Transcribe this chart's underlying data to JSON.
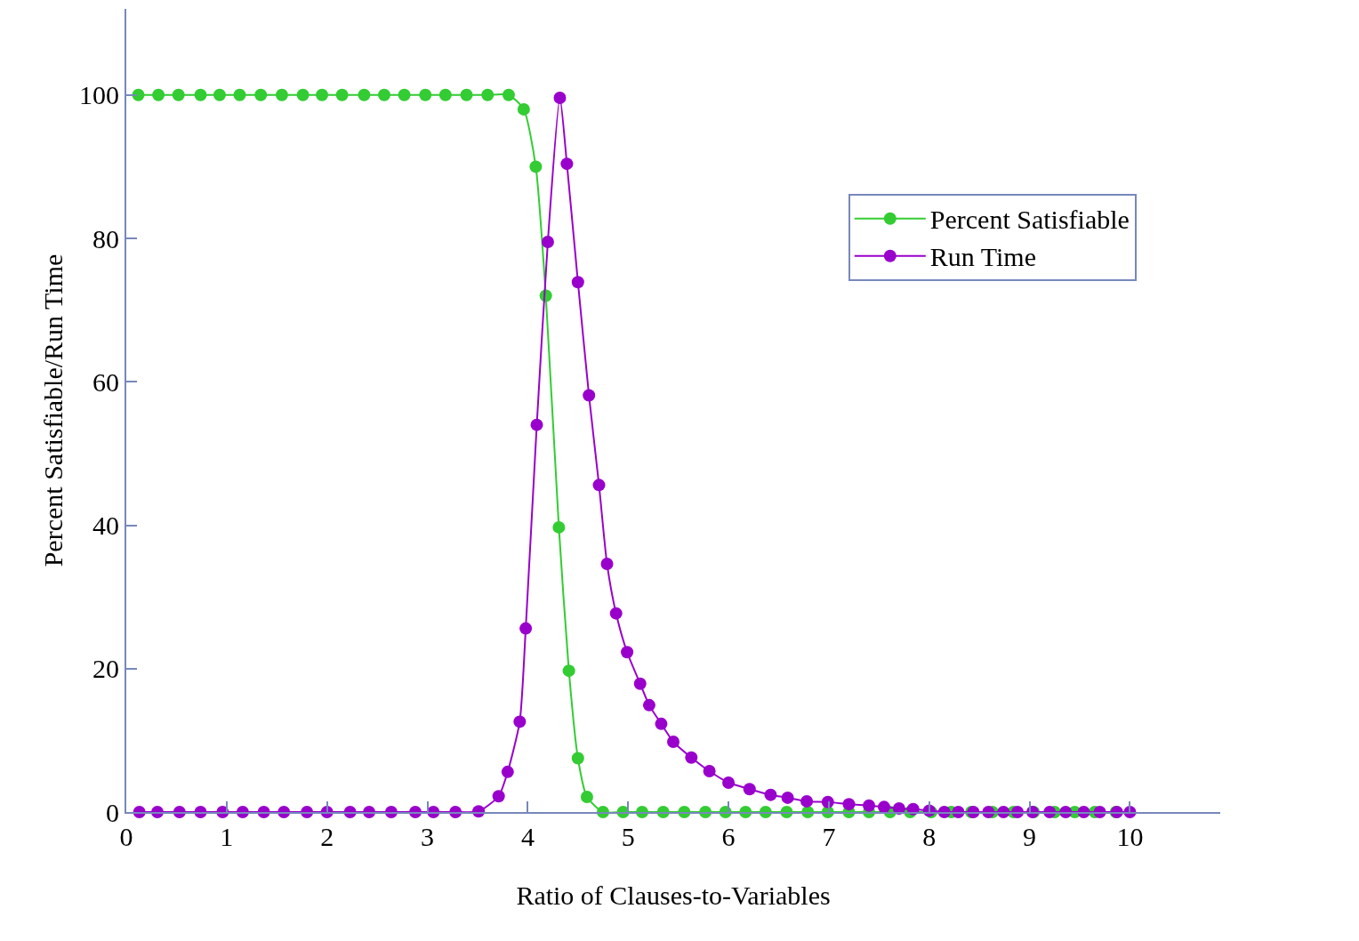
{
  "chart_data": {
    "type": "line",
    "xlabel": "Ratio of Clauses-to-Variables",
    "ylabel": "Percent Satisfiable/Run Time",
    "xlim": [
      0,
      10.9
    ],
    "ylim": [
      0,
      112
    ],
    "xticks": [
      0,
      1,
      2,
      3,
      4,
      5,
      6,
      7,
      8,
      9,
      10
    ],
    "yticks": [
      0,
      20,
      40,
      60,
      80,
      100
    ],
    "legend": "top right",
    "marker": "circle",
    "line_style": "solid",
    "series": [
      {
        "name": "Percent Satisfiable",
        "color": "#33cc33",
        "x": [
          0.12,
          0.32,
          0.52,
          0.74,
          0.93,
          1.13,
          1.34,
          1.55,
          1.76,
          1.95,
          2.15,
          2.37,
          2.57,
          2.77,
          2.98,
          3.18,
          3.39,
          3.6,
          3.81,
          3.96,
          4.08,
          4.18,
          4.31,
          4.41,
          4.5,
          4.59,
          4.75,
          4.95,
          5.14,
          5.35,
          5.56,
          5.77,
          5.97,
          6.17,
          6.37,
          6.58,
          6.79,
          6.99,
          7.2,
          7.4,
          7.61,
          7.81,
          8.02,
          8.22,
          8.42,
          8.63,
          8.84,
          9.04,
          9.25,
          9.45,
          9.65,
          9.86
        ],
        "values": [
          100,
          100,
          100,
          100,
          100,
          100,
          100,
          100,
          100,
          100,
          100,
          100,
          100,
          100,
          100,
          100,
          100,
          100,
          100,
          98,
          90,
          72,
          39.7,
          19.7,
          7.5,
          2.1,
          0,
          0,
          0,
          0,
          0,
          0,
          0,
          0,
          0,
          0,
          0,
          0,
          0,
          0,
          0,
          0,
          0,
          0,
          0,
          0,
          0,
          0,
          0,
          0,
          0,
          0
        ]
      },
      {
        "name": "Run Time",
        "color": "#9900cc",
        "x": [
          0.13,
          0.31,
          0.53,
          0.74,
          0.96,
          1.16,
          1.37,
          1.57,
          1.8,
          2.0,
          2.23,
          2.42,
          2.64,
          2.88,
          3.06,
          3.28,
          3.51,
          3.71,
          3.8,
          3.92,
          3.98,
          4.09,
          4.2,
          4.32,
          4.39,
          4.5,
          4.61,
          4.71,
          4.79,
          4.88,
          4.99,
          5.12,
          5.21,
          5.33,
          5.45,
          5.63,
          5.81,
          6.0,
          6.21,
          6.42,
          6.59,
          6.78,
          6.99,
          7.2,
          7.4,
          7.55,
          7.7,
          7.84,
          8.0,
          8.15,
          8.29,
          8.44,
          8.59,
          8.74,
          8.88,
          9.03,
          9.2,
          9.36,
          9.54,
          9.7,
          9.87,
          10.0
        ],
        "values": [
          0,
          0,
          0,
          0,
          0,
          0,
          0,
          0,
          0,
          0,
          0,
          0,
          0,
          0,
          0,
          0,
          0.1,
          2.2,
          5.6,
          12.6,
          25.6,
          54,
          79.5,
          99.6,
          90.4,
          73.9,
          58.1,
          45.6,
          34.6,
          27.7,
          22.3,
          17.9,
          14.9,
          12.3,
          9.8,
          7.6,
          5.7,
          4.1,
          3.2,
          2.4,
          2.0,
          1.5,
          1.4,
          1.1,
          0.9,
          0.7,
          0.5,
          0.4,
          0.2,
          0,
          0,
          0,
          0,
          0,
          0,
          0,
          0,
          0,
          0,
          0,
          0,
          0
        ]
      }
    ]
  }
}
